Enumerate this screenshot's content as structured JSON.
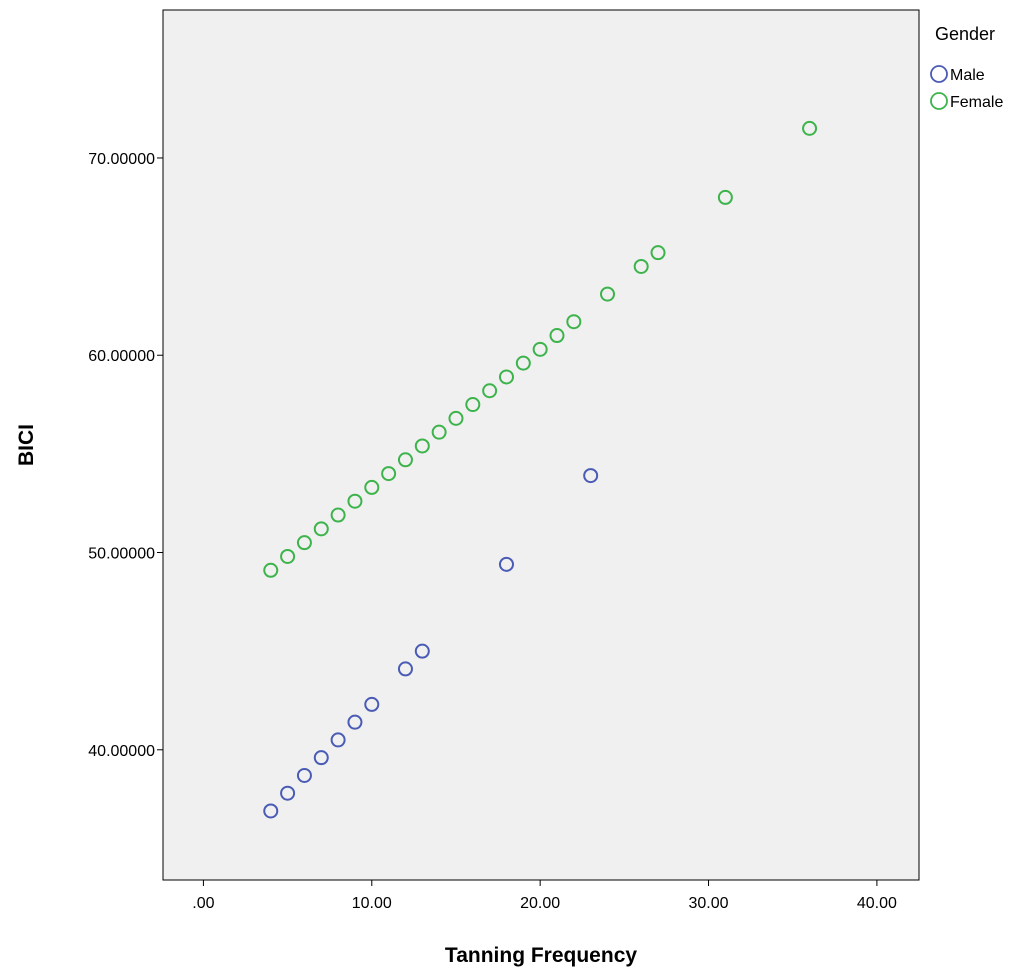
{
  "chart_data": {
    "type": "scatter",
    "xlabel": "Tanning Frequency",
    "ylabel": "BICI",
    "xlim": [
      -2.4,
      42.5
    ],
    "ylim": [
      33.4,
      77.5
    ],
    "x_ticks": [
      0,
      10,
      20,
      30,
      40
    ],
    "x_tick_labels": [
      ".00",
      "10.00",
      "20.00",
      "30.00",
      "40.00"
    ],
    "y_ticks": [
      40,
      50,
      60,
      70
    ],
    "y_tick_labels": [
      "40.00000",
      "50.00000",
      "60.00000",
      "70.00000"
    ],
    "grid": false,
    "legend": {
      "title": "Gender",
      "position": "right-top"
    },
    "series": [
      {
        "name": "Male",
        "color": "#4a5bb6",
        "points": [
          [
            4,
            36.9
          ],
          [
            5,
            37.8
          ],
          [
            6,
            38.7
          ],
          [
            7,
            39.6
          ],
          [
            8,
            40.5
          ],
          [
            9,
            41.4
          ],
          [
            10,
            42.3
          ],
          [
            12,
            44.1
          ],
          [
            13,
            45.0
          ],
          [
            18,
            49.4
          ],
          [
            23,
            53.9
          ]
        ]
      },
      {
        "name": "Female",
        "color": "#3cb44b",
        "points": [
          [
            4,
            49.1
          ],
          [
            5,
            49.8
          ],
          [
            6,
            50.5
          ],
          [
            7,
            51.2
          ],
          [
            8,
            51.9
          ],
          [
            9,
            52.6
          ],
          [
            10,
            53.3
          ],
          [
            11,
            54.0
          ],
          [
            12,
            54.7
          ],
          [
            13,
            55.4
          ],
          [
            14,
            56.1
          ],
          [
            15,
            56.8
          ],
          [
            16,
            57.5
          ],
          [
            17,
            58.2
          ],
          [
            18,
            58.9
          ],
          [
            19,
            59.6
          ],
          [
            20,
            60.3
          ],
          [
            21,
            61.0
          ],
          [
            22,
            61.7
          ],
          [
            24,
            63.1
          ],
          [
            26,
            64.5
          ],
          [
            27,
            65.2
          ],
          [
            31,
            68.0
          ],
          [
            36,
            71.5
          ]
        ]
      }
    ]
  }
}
